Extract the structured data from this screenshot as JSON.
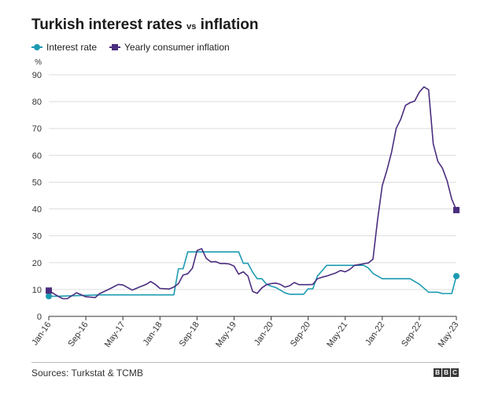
{
  "header": {
    "title_main": "Turkish interest rates ",
    "title_vs": "vs",
    "title_end": " inflation"
  },
  "legend": {
    "interest_label": "Interest rate",
    "inflation_label": "Yearly consumer inflation"
  },
  "colors": {
    "interest": "#1d9bb2",
    "inflation": "#4b2d7f",
    "grid": "#dddddd",
    "axis": "#333333"
  },
  "chart_data": {
    "type": "line",
    "y_unit_label": "%",
    "ylim": [
      0,
      90
    ],
    "yticks": [
      0,
      10,
      20,
      30,
      40,
      50,
      60,
      70,
      80,
      90
    ],
    "grid": "horizontal",
    "legend_position": "top-left",
    "x_ticks": [
      "Jan-16",
      "Sep-16",
      "May-17",
      "Jan-18",
      "Sep-18",
      "May-19",
      "Jan-20",
      "Sep-20",
      "May-21",
      "Jan-22",
      "Sep-22",
      "May-23"
    ],
    "series": [
      {
        "name": "Interest rate",
        "marker": "circle",
        "points": [
          [
            "Jan-16",
            7.5
          ],
          [
            "Mar-16",
            7.5
          ],
          [
            "Dec-16",
            8.0
          ],
          [
            "Apr-18",
            8.0
          ],
          [
            "May-18",
            17.75
          ],
          [
            "Jun-18",
            17.75
          ],
          [
            "Jul-18",
            24.0
          ],
          [
            "Jun-19",
            24.0
          ],
          [
            "Jul-19",
            19.75
          ],
          [
            "Aug-19",
            19.75
          ],
          [
            "Sep-19",
            16.5
          ],
          [
            "Oct-19",
            14.0
          ],
          [
            "Nov-19",
            14.0
          ],
          [
            "Dec-19",
            12.0
          ],
          [
            "Jan-20",
            11.25
          ],
          [
            "Feb-20",
            10.75
          ],
          [
            "Mar-20",
            9.75
          ],
          [
            "Apr-20",
            8.75
          ],
          [
            "May-20",
            8.25
          ],
          [
            "Aug-20",
            8.25
          ],
          [
            "Sep-20",
            10.25
          ],
          [
            "Oct-20",
            10.25
          ],
          [
            "Nov-20",
            15.0
          ],
          [
            "Dec-20",
            17.0
          ],
          [
            "Jan-21",
            19.0
          ],
          [
            "Sep-21",
            19.0
          ],
          [
            "Oct-21",
            18.0
          ],
          [
            "Nov-21",
            16.0
          ],
          [
            "Dec-21",
            15.0
          ],
          [
            "Jan-22",
            14.0
          ],
          [
            "Jul-22",
            14.0
          ],
          [
            "Aug-22",
            13.0
          ],
          [
            "Sep-22",
            12.0
          ],
          [
            "Oct-22",
            10.5
          ],
          [
            "Nov-22",
            9.0
          ],
          [
            "Dec-22",
            9.0
          ],
          [
            "Jan-23",
            9.0
          ],
          [
            "Feb-23",
            8.5
          ],
          [
            "Apr-23",
            8.5
          ],
          [
            "May-23",
            15.0
          ]
        ]
      },
      {
        "name": "Yearly consumer inflation",
        "marker": "square",
        "points": [
          [
            "Jan-16",
            9.6
          ],
          [
            "Mar-16",
            7.5
          ],
          [
            "Apr-16",
            6.6
          ],
          [
            "May-16",
            6.6
          ],
          [
            "Jul-16",
            8.8
          ],
          [
            "Sep-16",
            7.3
          ],
          [
            "Nov-16",
            7.0
          ],
          [
            "Dec-16",
            8.5
          ],
          [
            "Feb-17",
            10.1
          ],
          [
            "Apr-17",
            11.9
          ],
          [
            "May-17",
            11.7
          ],
          [
            "Jul-17",
            9.8
          ],
          [
            "Sep-17",
            11.2
          ],
          [
            "Oct-17",
            11.9
          ],
          [
            "Nov-17",
            13.0
          ],
          [
            "Dec-17",
            11.9
          ],
          [
            "Jan-18",
            10.4
          ],
          [
            "Mar-18",
            10.2
          ],
          [
            "Apr-18",
            10.9
          ],
          [
            "May-18",
            12.2
          ],
          [
            "Jun-18",
            15.4
          ],
          [
            "Jul-18",
            15.9
          ],
          [
            "Aug-18",
            17.9
          ],
          [
            "Sep-18",
            24.5
          ],
          [
            "Oct-18",
            25.2
          ],
          [
            "Nov-18",
            21.6
          ],
          [
            "Dec-18",
            20.3
          ],
          [
            "Jan-19",
            20.4
          ],
          [
            "Feb-19",
            19.7
          ],
          [
            "Mar-19",
            19.7
          ],
          [
            "Apr-19",
            19.5
          ],
          [
            "May-19",
            18.7
          ],
          [
            "Jun-19",
            15.7
          ],
          [
            "Jul-19",
            16.6
          ],
          [
            "Aug-19",
            15.0
          ],
          [
            "Sep-19",
            9.3
          ],
          [
            "Oct-19",
            8.6
          ],
          [
            "Nov-19",
            10.6
          ],
          [
            "Dec-19",
            11.8
          ],
          [
            "Jan-20",
            12.2
          ],
          [
            "Feb-20",
            12.4
          ],
          [
            "Mar-20",
            11.9
          ],
          [
            "Apr-20",
            10.9
          ],
          [
            "May-20",
            11.4
          ],
          [
            "Jun-20",
            12.6
          ],
          [
            "Jul-20",
            11.8
          ],
          [
            "Sep-20",
            11.8
          ],
          [
            "Oct-20",
            11.9
          ],
          [
            "Nov-20",
            14.0
          ],
          [
            "Dec-20",
            14.6
          ],
          [
            "Jan-21",
            15.0
          ],
          [
            "Feb-21",
            15.6
          ],
          [
            "Mar-21",
            16.2
          ],
          [
            "Apr-21",
            17.1
          ],
          [
            "May-21",
            16.6
          ],
          [
            "Jun-21",
            17.5
          ],
          [
            "Jul-21",
            19.0
          ],
          [
            "Aug-21",
            19.3
          ],
          [
            "Sep-21",
            19.6
          ],
          [
            "Oct-21",
            19.9
          ],
          [
            "Nov-21",
            21.3
          ],
          [
            "Dec-21",
            36.1
          ],
          [
            "Jan-22",
            48.7
          ],
          [
            "Feb-22",
            54.4
          ],
          [
            "Mar-22",
            61.1
          ],
          [
            "Apr-22",
            70.0
          ],
          [
            "May-22",
            73.5
          ],
          [
            "Jun-22",
            78.6
          ],
          [
            "Jul-22",
            79.6
          ],
          [
            "Aug-22",
            80.2
          ],
          [
            "Sep-22",
            83.5
          ],
          [
            "Oct-22",
            85.5
          ],
          [
            "Nov-22",
            84.4
          ],
          [
            "Dec-22",
            64.3
          ],
          [
            "Jan-23",
            57.7
          ],
          [
            "Feb-23",
            55.2
          ],
          [
            "Mar-23",
            50.5
          ],
          [
            "Apr-23",
            43.7
          ],
          [
            "May-23",
            39.6
          ]
        ]
      }
    ]
  },
  "footer": {
    "source": "Sources: Turkstat & TCMB",
    "logo_letters": [
      "B",
      "B",
      "C"
    ]
  }
}
